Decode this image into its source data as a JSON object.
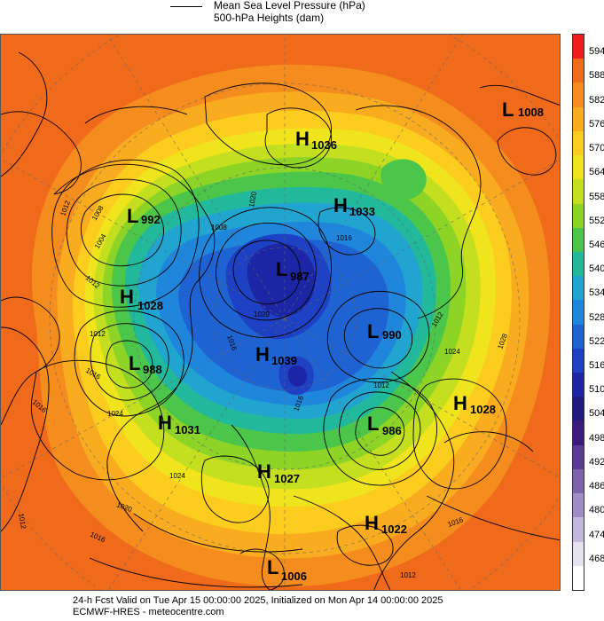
{
  "header": {
    "line1": "Mean Sea Level Pressure (hPa)",
    "line2": "500-hPa Heights (dam)"
  },
  "colorbar": {
    "labels": [
      "594",
      "588",
      "582",
      "576",
      "570",
      "564",
      "558",
      "552",
      "546",
      "540",
      "534",
      "528",
      "522",
      "516",
      "510",
      "504",
      "498",
      "492",
      "486",
      "480",
      "474",
      "468"
    ],
    "colors": [
      "#ee1c1c",
      "#f06a1c",
      "#f58c1e",
      "#f9ac1f",
      "#fccc1f",
      "#f0e51c",
      "#c4de20",
      "#8ed426",
      "#4cc64a",
      "#22b89c",
      "#21a5d0",
      "#1f86dc",
      "#1f63d2",
      "#1e40c2",
      "#1c26a5",
      "#1e1a7e",
      "#3b1b7e",
      "#5b3a95",
      "#7d63ad",
      "#a08dc5",
      "#c4b8dc",
      "#e7e2f0",
      "#ffffff"
    ]
  },
  "centers": [
    {
      "letter": "L",
      "value": "1008"
    },
    {
      "letter": "H",
      "value": "1036"
    },
    {
      "letter": "L",
      "value": "992"
    },
    {
      "letter": "H",
      "value": "1033"
    },
    {
      "letter": "L",
      "value": "987"
    },
    {
      "letter": "H",
      "value": "1028"
    },
    {
      "letter": "L",
      "value": "990"
    },
    {
      "letter": "L",
      "value": "988"
    },
    {
      "letter": "H",
      "value": "1039"
    },
    {
      "letter": "H",
      "value": "1028"
    },
    {
      "letter": "H",
      "value": "1031"
    },
    {
      "letter": "L",
      "value": "986"
    },
    {
      "letter": "H",
      "value": "1027"
    },
    {
      "letter": "H",
      "value": "1022"
    },
    {
      "letter": "L",
      "value": "1006"
    }
  ],
  "isobar_labels": [
    "1012",
    "1008",
    "1004",
    "1012",
    "1016",
    "1024",
    "1012",
    "1016",
    "1020",
    "1016",
    "1012",
    "1024",
    "1028",
    "1016",
    "1012",
    "1016",
    "1020",
    "1016",
    "1012",
    "1012",
    "1008",
    "1016",
    "1020",
    "1024"
  ],
  "footer": {
    "line1": "24-h Fcst Valid on Tue Apr 15 00:00:00 2025, Initialized on Mon Apr 14 00:00:00 2025",
    "line2": "ECMWF-HRES - meteocentre.com"
  }
}
